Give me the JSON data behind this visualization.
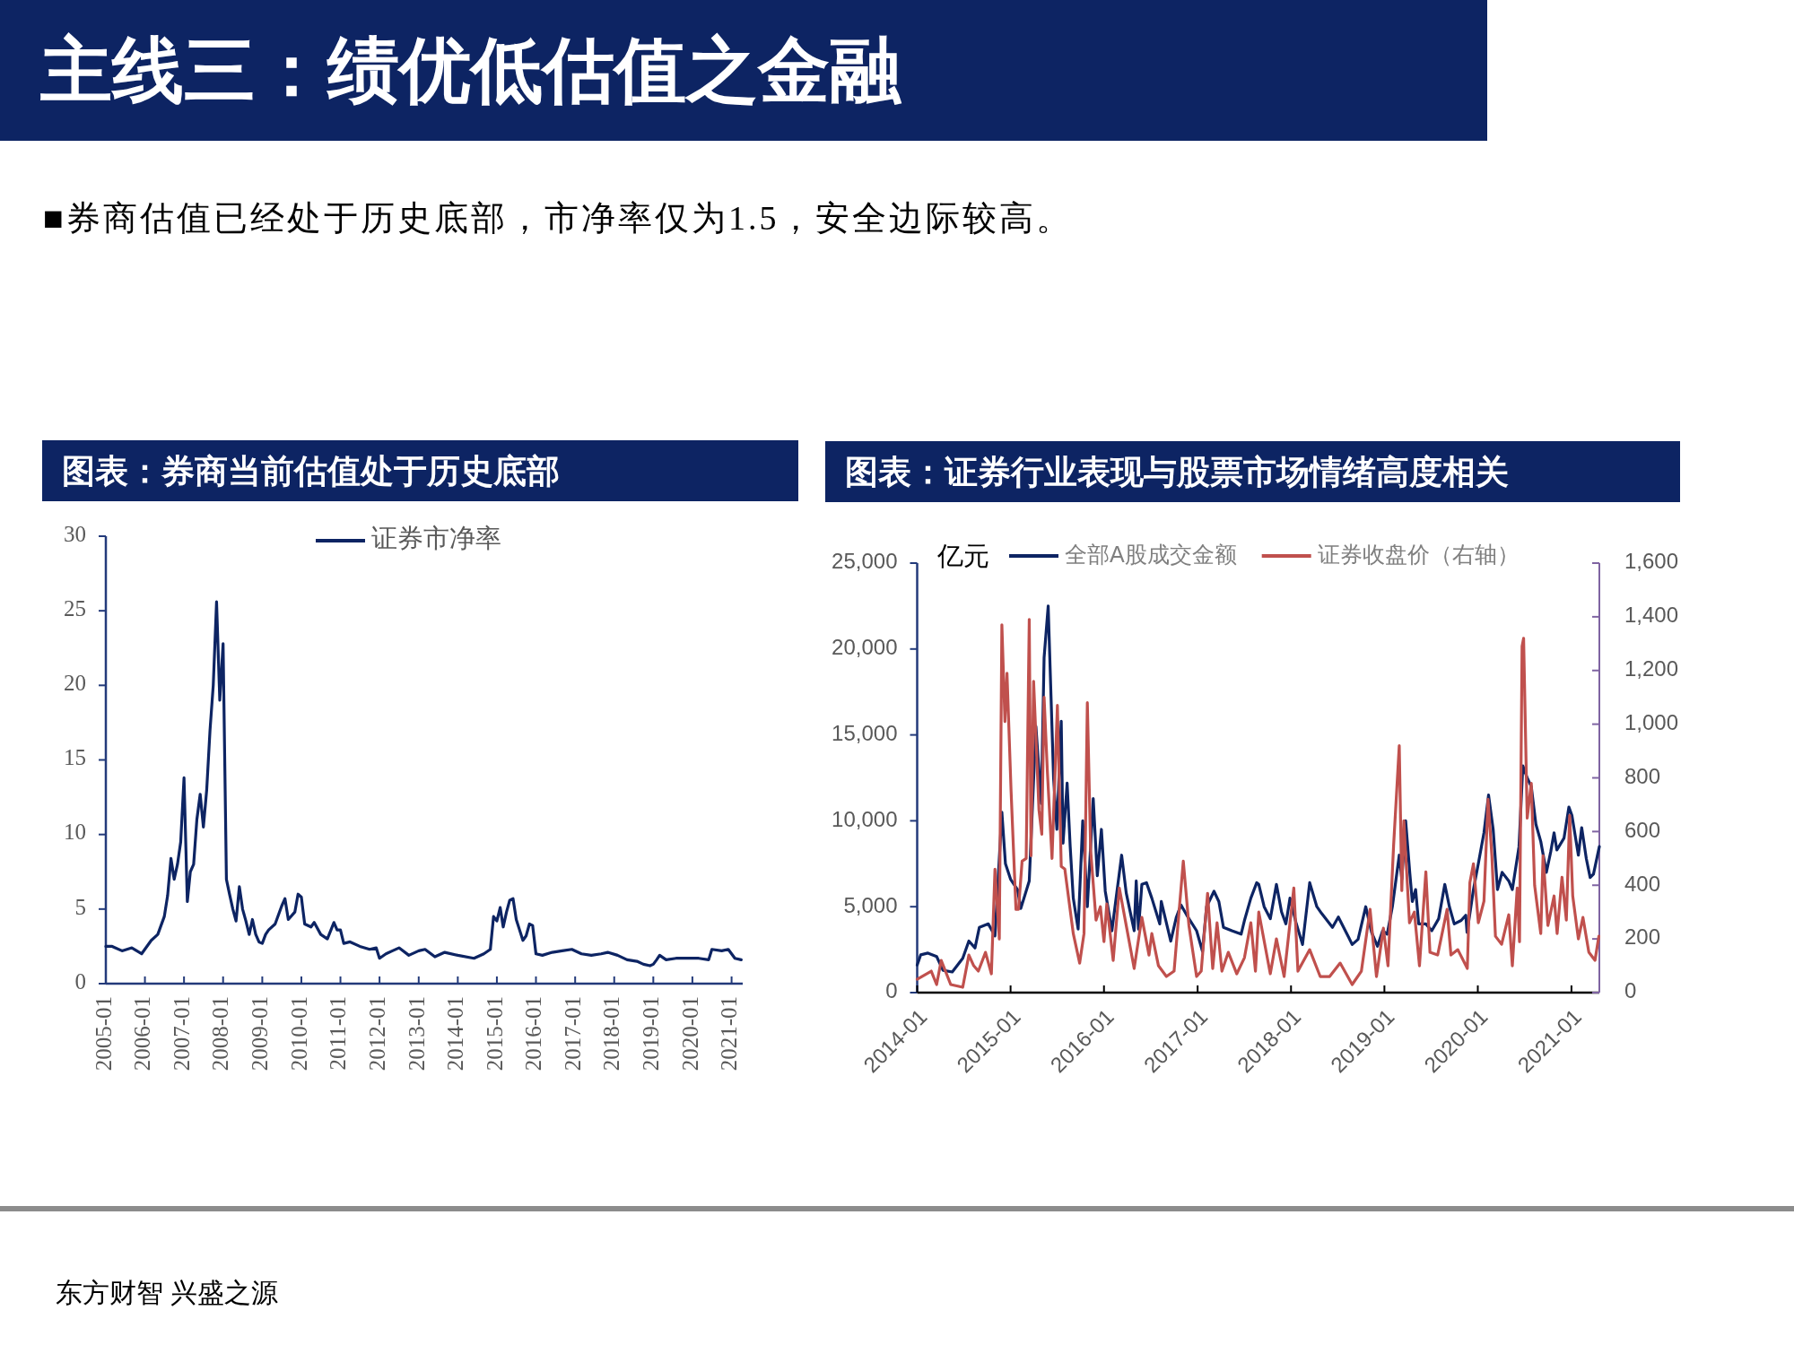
{
  "chart_data": [
    {
      "type": "line",
      "title": "图表：券商当前估值处于历史底部",
      "legend": "top",
      "annotations": [
        "主线三：绩优低估值之金融",
        "■券商估值已经处于历史底部，市净率仅为1.5，安全边际较高。",
        "东方财智 兴盛之源"
      ],
      "xlim": [
        "2005-01",
        "2021-04-15"
      ],
      "xticks": [
        "2005-01",
        "2006-01",
        "2007-01",
        "2008-01",
        "2009-01",
        "2010-01",
        "2011-01",
        "2012-01",
        "2013-01",
        "2014-01",
        "2015-01",
        "2016-01",
        "2017-01",
        "2018-01",
        "2019-01",
        "2020-01",
        "2021-01"
      ],
      "ylim": [
        0,
        30
      ],
      "yticks": [
        0,
        5,
        10,
        15,
        20,
        25,
        30
      ],
      "series": [
        {
          "name": "证券市净率",
          "color": "#0d2463",
          "x": [
            "2005-01",
            "2005-03",
            "2005-06",
            "2005-09",
            "2005-12",
            "2006-03",
            "2006-05",
            "2006-07",
            "2006-08",
            "2006-09",
            "2006-10",
            "2006-11",
            "2006-12",
            "2007-01",
            "2007-02",
            "2007-03",
            "2007-04",
            "2007-05",
            "2007-06",
            "2007-07",
            "2007-08",
            "2007-09",
            "2007-10",
            "2007-11",
            "2007-12",
            "2008-01",
            "2008-02",
            "2008-03",
            "2008-04",
            "2008-05",
            "2008-06",
            "2008-07",
            "2008-08",
            "2008-09",
            "2008-10",
            "2008-11",
            "2008-12",
            "2009-01",
            "2009-02",
            "2009-03",
            "2009-05",
            "2009-07",
            "2009-08",
            "2009-09",
            "2009-11",
            "2009-12",
            "2010-01",
            "2010-02",
            "2010-04",
            "2010-05",
            "2010-07",
            "2010-09",
            "2010-11",
            "2010-12",
            "2011-01",
            "2011-02",
            "2011-04",
            "2011-07",
            "2011-10",
            "2011-12",
            "2012-01",
            "2012-03",
            "2012-05",
            "2012-07",
            "2012-10",
            "2013-01",
            "2013-03",
            "2013-06",
            "2013-09",
            "2014-01",
            "2014-06",
            "2014-09",
            "2014-11",
            "2014-12",
            "2015-01",
            "2015-02",
            "2015-03",
            "2015-04",
            "2015-05",
            "2015-06",
            "2015-07",
            "2015-08",
            "2015-09",
            "2015-10",
            "2015-11",
            "2015-12",
            "2016-01",
            "2016-03",
            "2016-06",
            "2016-09",
            "2016-12",
            "2017-03",
            "2017-06",
            "2017-09",
            "2017-11",
            "2018-02",
            "2018-05",
            "2018-08",
            "2018-10",
            "2018-12",
            "2019-01",
            "2019-02",
            "2019-03",
            "2019-05",
            "2019-08",
            "2019-11",
            "2020-03",
            "2020-06",
            "2020-07",
            "2020-10",
            "2020-12",
            "2021-01",
            "2021-02",
            "2021-04"
          ],
          "values": [
            2.5,
            2.5,
            2.2,
            2.4,
            2.0,
            2.9,
            3.3,
            4.5,
            5.9,
            8.4,
            7.0,
            8.0,
            9.5,
            13.8,
            5.5,
            7.5,
            8.0,
            11.0,
            12.7,
            10.5,
            13.0,
            17.0,
            20.0,
            25.6,
            19.0,
            22.8,
            7.0,
            6.0,
            5.0,
            4.2,
            6.5,
            5.0,
            4.2,
            3.3,
            4.3,
            3.3,
            2.8,
            2.7,
            3.3,
            3.6,
            4.0,
            5.2,
            5.7,
            4.3,
            4.8,
            6.0,
            5.8,
            4.0,
            3.8,
            4.1,
            3.3,
            3.0,
            4.1,
            3.6,
            3.6,
            2.7,
            2.8,
            2.5,
            2.3,
            2.4,
            1.7,
            2.0,
            2.2,
            2.4,
            1.9,
            2.2,
            2.3,
            1.8,
            2.1,
            1.9,
            1.7,
            2.0,
            2.3,
            4.5,
            4.2,
            5.1,
            3.8,
            4.8,
            5.6,
            5.7,
            4.3,
            3.6,
            2.9,
            3.2,
            4.0,
            3.9,
            2.0,
            1.9,
            2.1,
            2.2,
            2.3,
            2.0,
            1.9,
            2.0,
            2.1,
            1.9,
            1.6,
            1.5,
            1.3,
            1.2,
            1.3,
            1.6,
            1.9,
            1.6,
            1.7,
            1.7,
            1.7,
            1.6,
            2.3,
            2.2,
            2.3,
            2.0,
            1.7,
            1.6
          ]
        }
      ]
    },
    {
      "type": "line",
      "title": "图表：证券行业表现与股票市场情绪高度相关",
      "ylabel": "亿元",
      "legend": "top",
      "xlim": [
        "2014-01",
        "2021-04-20"
      ],
      "xticks": [
        "2014-01",
        "2015-01",
        "2016-01",
        "2017-01",
        "2018-01",
        "2019-01",
        "2020-01",
        "2021-01"
      ],
      "ylim": [
        0,
        25000
      ],
      "yticks": [
        {
          "value": 0,
          "label": "0"
        },
        {
          "value": 5000,
          "label": "5,000"
        },
        {
          "value": 10000,
          "label": "10,000"
        },
        {
          "value": 15000,
          "label": "15,000"
        },
        {
          "value": 20000,
          "label": "20,000"
        },
        {
          "value": 25000,
          "label": "25,000"
        }
      ],
      "y2lim": [
        0,
        1600
      ],
      "y2ticks": [
        0,
        200,
        400,
        600,
        800,
        {
          "value": 1000,
          "label": "1,000"
        },
        {
          "value": 1200,
          "label": "1,200"
        },
        {
          "value": 1400,
          "label": "1,400"
        },
        {
          "value": 1600,
          "label": "1,600"
        }
      ],
      "series": [
        {
          "name": "全部A股成交金额",
          "color": "#0d2463",
          "x": [
            "2014-01-01",
            "2014-01-15",
            "2014-02-12",
            "2014-03-18",
            "2014-04-12",
            "2014-05-18",
            "2014-06-28",
            "2014-07-22",
            "2014-08-15",
            "2014-09-01",
            "2014-10-06",
            "2014-11-01",
            "2014-11-28",
            "2014-12-12",
            "2015-01-01",
            "2015-01-28",
            "2015-02-10",
            "2015-03-15",
            "2015-04-10",
            "2015-05-01",
            "2015-05-12",
            "2015-05-28",
            "2015-06-18",
            "2015-07-01",
            "2015-07-18",
            "2015-07-25",
            "2015-08-10",
            "2015-08-22",
            "2015-09-03",
            "2015-09-22",
            "2015-10-10",
            "2015-10-28",
            "2015-11-20",
            "2015-12-06",
            "2015-12-22",
            "2016-01-06",
            "2016-02-01",
            "2016-03-10",
            "2016-03-28",
            "2016-04-28",
            "2016-05-06",
            "2016-05-15",
            "2016-05-28",
            "2016-06-15",
            "2016-07-06",
            "2016-08-06",
            "2016-08-12",
            "2016-09-18",
            "2016-10-10",
            "2016-10-28",
            "2016-11-20",
            "2016-12-28",
            "2017-01-20",
            "2017-02-05",
            "2017-03-06",
            "2017-03-25",
            "2017-04-12",
            "2017-05-15",
            "2017-06-20",
            "2017-07-03",
            "2017-07-28",
            "2017-08-20",
            "2017-08-28",
            "2017-09-18",
            "2017-10-12",
            "2017-11-05",
            "2017-11-25",
            "2017-12-12",
            "2017-12-28",
            "2018-01-20",
            "2018-02-15",
            "2018-03-15",
            "2018-04-12",
            "2018-05-01",
            "2018-06-12",
            "2018-07-05",
            "2018-08-15",
            "2018-08-28",
            "2018-09-20",
            "2018-10-20",
            "2018-11-12",
            "2018-12-05",
            "2018-12-25",
            "2019-01-12",
            "2019-02-01",
            "2019-02-28",
            "2019-03-10",
            "2019-03-25",
            "2019-04-10",
            "2019-04-20",
            "2019-05-03",
            "2019-05-15",
            "2019-06-12",
            "2019-07-05",
            "2019-08-01",
            "2019-08-25",
            "2019-09-12",
            "2019-10-01",
            "2019-10-28",
            "2019-11-15",
            "2019-11-20",
            "2019-12-15",
            "2020-01-03",
            "2020-01-25",
            "2020-02-12",
            "2020-03-01",
            "2020-03-18",
            "2020-04-05",
            "2020-05-01",
            "2020-05-15",
            "2020-06-10",
            "2020-06-25",
            "2020-07-12",
            "2020-07-28",
            "2020-08-15",
            "2020-09-03",
            "2020-09-25",
            "2020-10-12",
            "2020-10-25",
            "2020-11-05",
            "2020-12-03",
            "2020-12-22",
            "2021-01-03",
            "2021-01-28",
            "2021-02-10",
            "2021-02-28",
            "2021-03-15",
            "2021-03-28",
            "2021-04-20"
          ],
          "values": [
            1600,
            2200,
            2300,
            2100,
            1300,
            1200,
            2000,
            3000,
            2600,
            3800,
            4000,
            3300,
            10500,
            7500,
            6600,
            6000,
            4900,
            6500,
            15500,
            11000,
            19500,
            22500,
            12500,
            9500,
            15800,
            8700,
            12200,
            8500,
            5500,
            3700,
            10000,
            5000,
            11300,
            6800,
            9500,
            5900,
            3600,
            8000,
            5800,
            3600,
            6500,
            3700,
            6300,
            6400,
            5500,
            4000,
            5300,
            3000,
            4400,
            5100,
            4500,
            3600,
            2400,
            5000,
            5900,
            5300,
            3800,
            3600,
            3400,
            4200,
            5500,
            6400,
            6300,
            5000,
            4300,
            6300,
            4700,
            4000,
            5500,
            4100,
            2800,
            6400,
            5000,
            4600,
            3800,
            4400,
            3200,
            2800,
            3100,
            5000,
            3500,
            2700,
            3600,
            3400,
            5000,
            8000,
            6600,
            10000,
            7000,
            5300,
            6000,
            4000,
            4000,
            3600,
            4300,
            6300,
            5000,
            4000,
            4200,
            4500,
            3500,
            6000,
            7500,
            9300,
            11500,
            9500,
            6000,
            7000,
            6500,
            6000,
            8500,
            13200,
            12500,
            12000,
            9800,
            8800,
            7000,
            8200,
            9300,
            8300,
            9000,
            10800,
            10300,
            8000,
            9600,
            7800,
            6700,
            6900,
            8500
          ]
        },
        {
          "name": "证券收盘价（右轴）",
          "color": "#c0504d",
          "axis": "y2",
          "x": [
            "2014-01-01",
            "2014-02-25",
            "2014-03-18",
            "2014-04-05",
            "2014-05-12",
            "2014-06-28",
            "2014-07-22",
            "2014-08-10",
            "2014-08-28",
            "2014-09-25",
            "2014-10-18",
            "2014-11-01",
            "2014-11-18",
            "2014-11-28",
            "2014-12-10",
            "2014-12-18",
            "2015-01-03",
            "2015-01-22",
            "2015-02-01",
            "2015-02-15",
            "2015-03-03",
            "2015-03-15",
            "2015-03-22",
            "2015-04-01",
            "2015-04-22",
            "2015-05-03",
            "2015-05-12",
            "2015-05-25",
            "2015-06-12",
            "2015-07-03",
            "2015-07-18",
            "2015-08-01",
            "2015-09-03",
            "2015-09-28",
            "2015-10-15",
            "2015-10-28",
            "2015-11-10",
            "2015-12-01",
            "2015-12-18",
            "2016-01-01",
            "2016-01-12",
            "2016-02-06",
            "2016-03-01",
            "2016-03-28",
            "2016-04-28",
            "2016-05-28",
            "2016-06-25",
            "2016-07-06",
            "2016-08-01",
            "2016-09-01",
            "2016-10-01",
            "2016-11-06",
            "2016-11-28",
            "2016-12-28",
            "2017-01-15",
            "2017-02-09",
            "2017-03-01",
            "2017-03-18",
            "2017-04-06",
            "2017-05-01",
            "2017-06-03",
            "2017-07-03",
            "2017-07-28",
            "2017-08-15",
            "2017-08-28",
            "2017-10-12",
            "2017-11-05",
            "2017-12-05",
            "2018-01-12",
            "2018-01-28",
            "2018-03-15",
            "2018-04-25",
            "2018-06-01",
            "2018-07-12",
            "2018-08-28",
            "2018-10-03",
            "2018-11-06",
            "2018-12-01",
            "2018-12-28",
            "2019-01-15",
            "2019-02-06",
            "2019-02-28",
            "2019-03-10",
            "2019-03-18",
            "2019-04-09",
            "2019-04-28",
            "2019-05-18",
            "2019-06-12",
            "2019-06-28",
            "2019-07-28",
            "2019-09-03",
            "2019-09-18",
            "2019-10-15",
            "2019-11-21",
            "2019-12-01",
            "2019-12-15",
            "2020-01-03",
            "2020-01-25",
            "2020-02-10",
            "2020-02-25",
            "2020-03-10",
            "2020-04-03",
            "2020-05-01",
            "2020-05-15",
            "2020-06-03",
            "2020-06-12",
            "2020-06-22",
            "2020-06-28",
            "2020-07-12",
            "2020-07-28",
            "2020-08-10",
            "2020-09-03",
            "2020-09-12",
            "2020-10-01",
            "2020-10-25",
            "2020-11-06",
            "2020-11-25",
            "2020-12-12",
            "2020-12-25",
            "2021-01-06",
            "2021-01-28",
            "2021-02-15",
            "2021-03-10",
            "2021-04-03",
            "2021-04-18"
          ],
          "values": [
            50,
            80,
            30,
            120,
            30,
            20,
            140,
            100,
            80,
            150,
            70,
            460,
            200,
            1370,
            1010,
            1190,
            750,
            310,
            310,
            490,
            500,
            1390,
            510,
            1160,
            680,
            590,
            1100,
            820,
            500,
            1070,
            470,
            460,
            220,
            110,
            220,
            1080,
            530,
            270,
            320,
            190,
            330,
            120,
            390,
            250,
            90,
            280,
            140,
            220,
            100,
            60,
            80,
            490,
            250,
            60,
            80,
            370,
            90,
            260,
            80,
            150,
            70,
            130,
            260,
            80,
            300,
            70,
            200,
            60,
            390,
            80,
            160,
            60,
            60,
            110,
            30,
            80,
            310,
            60,
            240,
            100,
            550,
            920,
            380,
            640,
            260,
            300,
            100,
            450,
            150,
            140,
            310,
            140,
            160,
            90,
            410,
            480,
            260,
            340,
            720,
            510,
            210,
            180,
            290,
            100,
            390,
            190,
            1290,
            1320,
            650,
            780,
            400,
            220,
            510,
            250,
            360,
            220,
            430,
            270,
            660,
            360,
            200,
            280,
            150,
            120,
            210
          ]
        }
      ]
    }
  ]
}
